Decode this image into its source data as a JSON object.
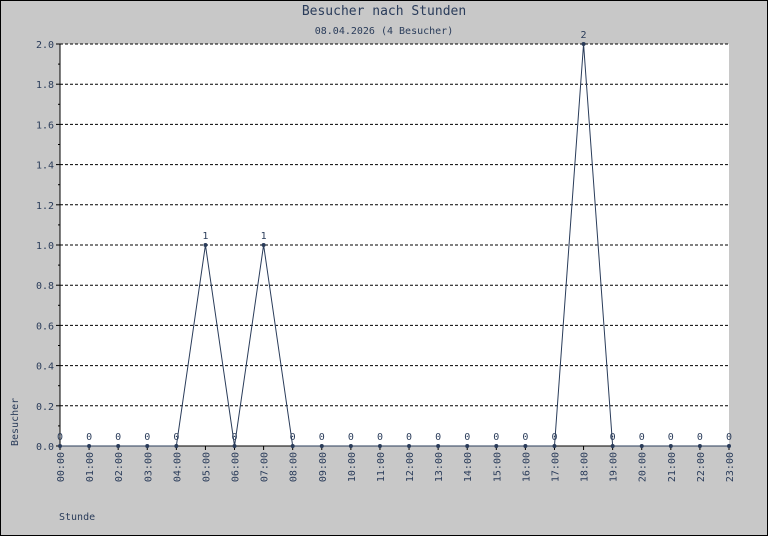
{
  "chart_data": {
    "type": "line",
    "title": "Besucher nach Stunden",
    "subtitle": "08.04.2026 (4 Besucher)",
    "xlabel": "Stunde",
    "ylabel": "Besucher",
    "ylim": [
      0,
      2
    ],
    "yticks": [
      "0.0",
      "0.2",
      "0.4",
      "0.6",
      "0.8",
      "1.0",
      "1.2",
      "1.4",
      "1.6",
      "1.8",
      "2.0"
    ],
    "categories": [
      "00:00",
      "01:00",
      "02:00",
      "03:00",
      "04:00",
      "05:00",
      "06:00",
      "07:00",
      "08:00",
      "09:00",
      "10:00",
      "11:00",
      "12:00",
      "13:00",
      "14:00",
      "15:00",
      "16:00",
      "17:00",
      "18:00",
      "19:00",
      "20:00",
      "21:00",
      "22:00",
      "23:00"
    ],
    "series": [
      {
        "values": [
          0,
          0,
          0,
          0,
          0,
          1,
          0,
          1,
          0,
          0,
          0,
          0,
          0,
          0,
          0,
          0,
          0,
          0,
          2,
          0,
          0,
          0,
          0,
          0
        ]
      }
    ],
    "grid": true,
    "line_color": "#2a3c5a"
  }
}
